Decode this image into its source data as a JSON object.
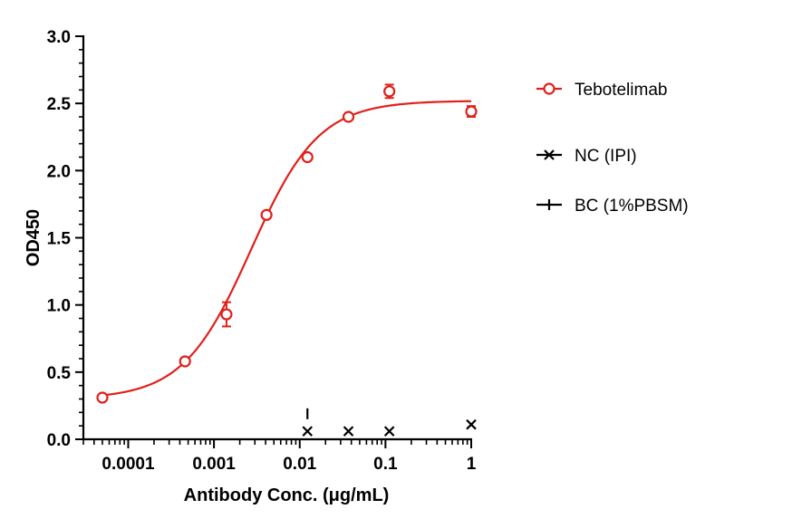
{
  "chart_data": {
    "type": "scatter",
    "xlabel": "Antibody Conc. (μg/mL)",
    "ylabel": "OD450",
    "xscale": "log",
    "xlim": [
      3e-05,
      1.0
    ],
    "ylim": [
      0,
      3.0
    ],
    "x_ticks": [
      0.0001,
      0.001,
      0.01,
      0.1,
      1
    ],
    "x_tick_labels": [
      "0.0001",
      "0.001",
      "0.01",
      "0.1",
      "1"
    ],
    "y_ticks": [
      0,
      0.5,
      1.0,
      1.5,
      2.0,
      2.5,
      3.0
    ],
    "y_tick_labels": [
      "0.0",
      "0.5",
      "1.0",
      "1.5",
      "2.0",
      "2.5",
      "3.0"
    ],
    "legend_position": "right",
    "grid": false,
    "series": [
      {
        "name": "Tebotelimab",
        "marker": "open-circle",
        "color": "#e0201b",
        "points": [
          {
            "x": 5e-05,
            "y": 0.31,
            "err": 0.02
          },
          {
            "x": 0.00046,
            "y": 0.58,
            "err": 0.02
          },
          {
            "x": 0.0014,
            "y": 0.93,
            "err": 0.09
          },
          {
            "x": 0.0041,
            "y": 1.67,
            "err": 0.02
          },
          {
            "x": 0.0123,
            "y": 2.1,
            "err": 0.02
          },
          {
            "x": 0.037,
            "y": 2.4,
            "err": 0.02
          },
          {
            "x": 0.111,
            "y": 2.59,
            "err": 0.05
          },
          {
            "x": 1.0,
            "y": 2.44,
            "err": 0.04
          }
        ],
        "fit": {
          "model": "4PL",
          "bottom": 0.3,
          "top": 2.52,
          "ec50": 0.0027,
          "hill": 1.1
        }
      },
      {
        "name": "NC (IPI)",
        "marker": "x",
        "color": "#000000",
        "points": [
          {
            "x": 0.0123,
            "y": 0.06
          },
          {
            "x": 0.037,
            "y": 0.06
          },
          {
            "x": 0.111,
            "y": 0.06
          },
          {
            "x": 1.0,
            "y": 0.11
          }
        ]
      },
      {
        "name": "BC (1%PBSM)",
        "marker": "plus",
        "color": "#000000",
        "points": [
          {
            "x": 0.0123,
            "y": 0.19
          }
        ]
      }
    ]
  }
}
